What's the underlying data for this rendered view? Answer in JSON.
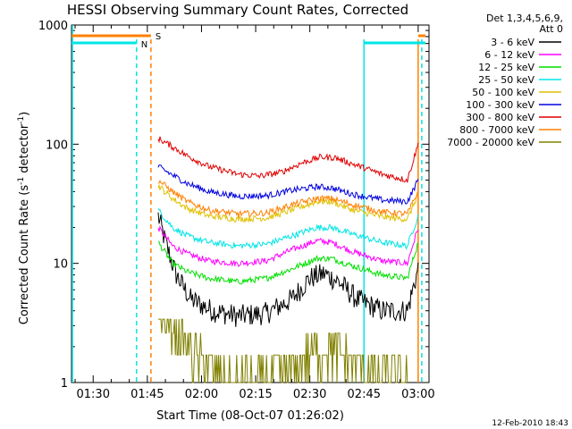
{
  "chart_data": {
    "type": "line",
    "title": "HESSI Observing Summary Count Rates, Corrected",
    "xlabel": "Start Time (08-Oct-07 01:26:02)",
    "ylabel_main": "Corrected Count Rate (s",
    "ylabel_sup1": "-1",
    "ylabel_mid": " detector",
    "ylabel_sup2": "-1",
    "ylabel_end": ")",
    "ylog": true,
    "ylim": [
      1,
      1000
    ],
    "xlim": [
      "01:24",
      "03:03"
    ],
    "x_ticks": [
      "01:30",
      "01:45",
      "02:00",
      "02:15",
      "02:30",
      "02:45",
      "03:00"
    ],
    "y_tick_labels": [
      "1",
      "10",
      "100",
      "1000"
    ],
    "timestamp": "12-Feb-2010 18:43",
    "legend_header": [
      "Det 1,3,4,5,6,9,",
      "Att 0"
    ],
    "legend_placement": "top-right, outside plot",
    "flags": [
      {
        "label": "S",
        "color": "#ff8000"
      },
      {
        "label": "N",
        "color": "#00e5e5"
      }
    ],
    "series": [
      {
        "name": "3 - 6 keV",
        "color": "#000000",
        "values": [
          [
            "01:48",
            25
          ],
          [
            "01:50",
            15
          ],
          [
            "01:53",
            8
          ],
          [
            "01:57",
            5
          ],
          [
            "02:03",
            4
          ],
          [
            "02:10",
            3.6
          ],
          [
            "02:18",
            3.8
          ],
          [
            "02:25",
            5
          ],
          [
            "02:30",
            7.5
          ],
          [
            "02:34",
            8.2
          ],
          [
            "02:38",
            7
          ],
          [
            "02:43",
            5
          ],
          [
            "02:50",
            4
          ],
          [
            "02:57",
            4
          ],
          [
            "03:00",
            9
          ]
        ]
      },
      {
        "name": "6 - 12 keV",
        "color": "#ff00ff",
        "values": [
          [
            "01:48",
            20
          ],
          [
            "01:52",
            14
          ],
          [
            "01:56",
            12
          ],
          [
            "02:02",
            10.5
          ],
          [
            "02:10",
            10
          ],
          [
            "02:18",
            10.5
          ],
          [
            "02:25",
            13
          ],
          [
            "02:32",
            15.5
          ],
          [
            "02:36",
            15
          ],
          [
            "02:42",
            12.5
          ],
          [
            "02:50",
            10.5
          ],
          [
            "02:57",
            10
          ],
          [
            "03:00",
            20
          ]
        ]
      },
      {
        "name": "12 - 25 keV",
        "color": "#00e000",
        "values": [
          [
            "01:48",
            15
          ],
          [
            "01:52",
            10
          ],
          [
            "01:56",
            8.5
          ],
          [
            "02:02",
            7.5
          ],
          [
            "02:10",
            7
          ],
          [
            "02:18",
            7.5
          ],
          [
            "02:25",
            9
          ],
          [
            "02:32",
            11
          ],
          [
            "02:36",
            11
          ],
          [
            "02:42",
            9.5
          ],
          [
            "02:50",
            8
          ],
          [
            "02:57",
            7.5
          ],
          [
            "03:00",
            15
          ]
        ]
      },
      {
        "name": "25 - 50 keV",
        "color": "#00e5e5",
        "values": [
          [
            "01:48",
            28
          ],
          [
            "01:52",
            20
          ],
          [
            "01:56",
            17
          ],
          [
            "02:02",
            15
          ],
          [
            "02:10",
            14
          ],
          [
            "02:18",
            14.5
          ],
          [
            "02:25",
            17
          ],
          [
            "02:32",
            20
          ],
          [
            "02:36",
            20
          ],
          [
            "02:42",
            17.5
          ],
          [
            "02:50",
            15
          ],
          [
            "02:57",
            14
          ],
          [
            "03:00",
            25
          ]
        ]
      },
      {
        "name": "50 - 100 keV",
        "color": "#e0c000",
        "values": [
          [
            "01:48",
            45
          ],
          [
            "01:52",
            35
          ],
          [
            "01:56",
            29
          ],
          [
            "02:02",
            25
          ],
          [
            "02:10",
            23.5
          ],
          [
            "02:18",
            24
          ],
          [
            "02:25",
            28
          ],
          [
            "02:32",
            33
          ],
          [
            "02:36",
            33
          ],
          [
            "02:42",
            28
          ],
          [
            "02:50",
            24.5
          ],
          [
            "02:57",
            23.5
          ],
          [
            "03:00",
            38
          ]
        ]
      },
      {
        "name": "100 - 300 keV",
        "color": "#0000e0",
        "values": [
          [
            "01:48",
            65
          ],
          [
            "01:52",
            55
          ],
          [
            "01:56",
            47
          ],
          [
            "02:02",
            40
          ],
          [
            "02:10",
            36.5
          ],
          [
            "02:18",
            37
          ],
          [
            "02:25",
            41
          ],
          [
            "02:32",
            44
          ],
          [
            "02:36",
            43
          ],
          [
            "02:42",
            38
          ],
          [
            "02:50",
            34
          ],
          [
            "02:57",
            33
          ],
          [
            "03:00",
            50
          ]
        ]
      },
      {
        "name": "300 - 800 keV",
        "color": "#e00000",
        "values": [
          [
            "01:48",
            112
          ],
          [
            "01:52",
            95
          ],
          [
            "01:56",
            80
          ],
          [
            "02:02",
            65
          ],
          [
            "02:10",
            56
          ],
          [
            "02:16",
            54
          ],
          [
            "02:22",
            58
          ],
          [
            "02:28",
            70
          ],
          [
            "02:33",
            78
          ],
          [
            "02:37",
            77
          ],
          [
            "02:42",
            68
          ],
          [
            "02:50",
            56
          ],
          [
            "02:57",
            50
          ],
          [
            "03:00",
            100
          ]
        ]
      },
      {
        "name": "800 - 7000 keV",
        "color": "#ff8000",
        "values": [
          [
            "01:48",
            50
          ],
          [
            "01:52",
            40
          ],
          [
            "01:56",
            33
          ],
          [
            "02:02",
            28
          ],
          [
            "02:10",
            26
          ],
          [
            "02:18",
            26.5
          ],
          [
            "02:25",
            31
          ],
          [
            "02:32",
            35
          ],
          [
            "02:36",
            35
          ],
          [
            "02:42",
            31
          ],
          [
            "02:50",
            27
          ],
          [
            "02:57",
            26
          ],
          [
            "03:00",
            40
          ]
        ]
      },
      {
        "name": "7000 - 20000 keV",
        "color": "#808000",
        "values": [
          [
            "01:48",
            4
          ],
          [
            "01:53",
            2.8
          ],
          [
            "01:58",
            1.6
          ],
          [
            "02:04",
            1.2
          ],
          [
            "02:10",
            1.0
          ],
          [
            "02:18",
            1.0
          ],
          [
            "02:25",
            1.3
          ],
          [
            "02:30",
            1.7
          ],
          [
            "02:36",
            1.9
          ],
          [
            "02:42",
            1.4
          ],
          [
            "02:50",
            1.1
          ],
          [
            "02:57",
            1.0
          ]
        ]
      }
    ]
  }
}
